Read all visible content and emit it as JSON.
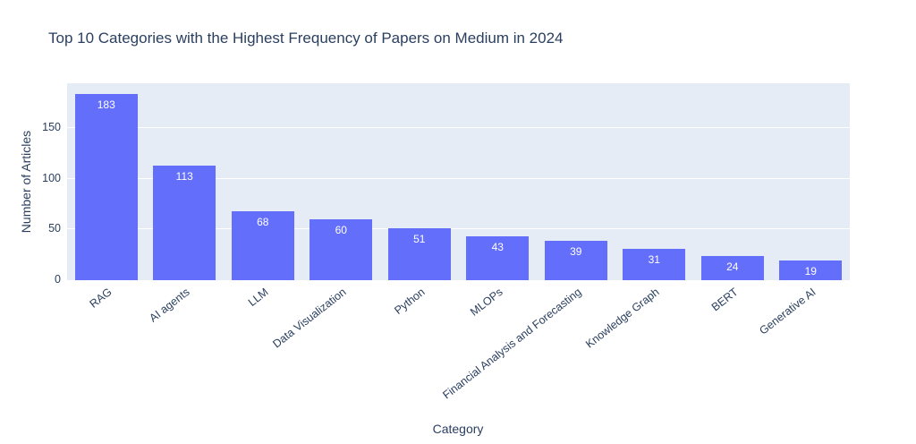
{
  "chart_data": {
    "type": "bar",
    "title": "Top 10 Categories with the Highest Frequency of Papers on Medium in 2024",
    "xlabel": "Category",
    "ylabel": "Number of Articles",
    "categories": [
      "RAG",
      "AI agents",
      "LLM",
      "Data Visualization",
      "Python",
      "MLOPs",
      "Financial Analysis and Forecasting",
      "Knowledge Graph",
      "BERT",
      "Generative AI"
    ],
    "values": [
      183,
      113,
      68,
      60,
      51,
      43,
      39,
      31,
      24,
      19
    ],
    "bar_value_labels": [
      "183",
      "113",
      "68",
      "60",
      "51",
      "43",
      "39",
      "31",
      "24",
      "19"
    ],
    "yticks": [
      0,
      50,
      100,
      150
    ],
    "ylim": [
      0,
      194
    ],
    "grid": true,
    "legend_position": "none",
    "colors": {
      "bar": "#636efa",
      "plot_background": "#e5ecf6",
      "gridline": "#ffffff",
      "text": "#2a3f5f",
      "bar_label_text": "#ffffff",
      "page_background": "#ffffff"
    }
  }
}
